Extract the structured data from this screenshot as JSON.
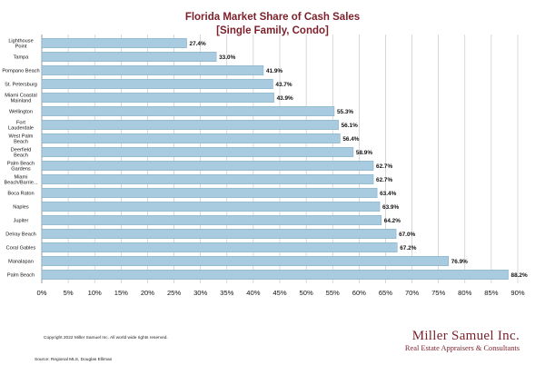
{
  "colors": {
    "title": "#7b1f2a",
    "bar_fill": "#a9cbe0",
    "bar_stroke": "#7ea9c4",
    "gridline": "#bfbfbf",
    "brand": "#7b1f2a"
  },
  "chart_data": {
    "type": "bar",
    "orientation": "horizontal",
    "title": "Florida Market Share of Cash Sales",
    "subtitle": "[Single Family, Condo]",
    "categories": [
      "Lighthouse Point",
      "Tampa",
      "Pompano Beach",
      "St. Petersburg",
      "Miami Coastal Mainland",
      "Wellington",
      "Fort Lauderdale",
      "West Palm Beach",
      "Deerfield Beach",
      "Palm Beach Gardens",
      "Miami Beach/Barrie...",
      "Boca Raton",
      "Naples",
      "Jupiter",
      "Delray Beach",
      "Coral Gables",
      "Manalapan",
      "Palm Beach"
    ],
    "values": [
      27.4,
      33.0,
      41.9,
      43.7,
      43.9,
      55.3,
      56.1,
      56.4,
      58.9,
      62.7,
      62.7,
      63.4,
      63.9,
      64.2,
      67.0,
      67.2,
      76.9,
      88.2
    ],
    "value_labels": [
      "27.4%",
      "33.0%",
      "41.9%",
      "43.7%",
      "43.9%",
      "55.3%",
      "56.1%",
      "56.4%",
      "58.9%",
      "62.7%",
      "62.7%",
      "63.4%",
      "63.9%",
      "64.2%",
      "67.0%",
      "67.2%",
      "76.9%",
      "88.2%"
    ],
    "xlim": [
      0,
      90
    ],
    "xticks": [
      0,
      5,
      10,
      15,
      20,
      25,
      30,
      35,
      40,
      45,
      50,
      55,
      60,
      65,
      70,
      75,
      80,
      85,
      90
    ],
    "xtick_labels": [
      "0%",
      "5%",
      "10%",
      "15%",
      "20%",
      "25%",
      "30%",
      "35%",
      "40%",
      "45%",
      "50%",
      "55%",
      "60%",
      "65%",
      "70%",
      "75%",
      "80%",
      "85%",
      "90%"
    ],
    "xlabel": "",
    "ylabel": "",
    "grid": true,
    "legend": "none"
  },
  "footer": {
    "copyright": "Copyright 2022 Miller Samuel Inc.  All world wide rights reserved.",
    "source": "Source: Regional MLS, Douglas Elliman"
  },
  "brand": {
    "name": "Miller Samuel Inc.",
    "tagline": "Real Estate Appraisers & Consultants"
  }
}
